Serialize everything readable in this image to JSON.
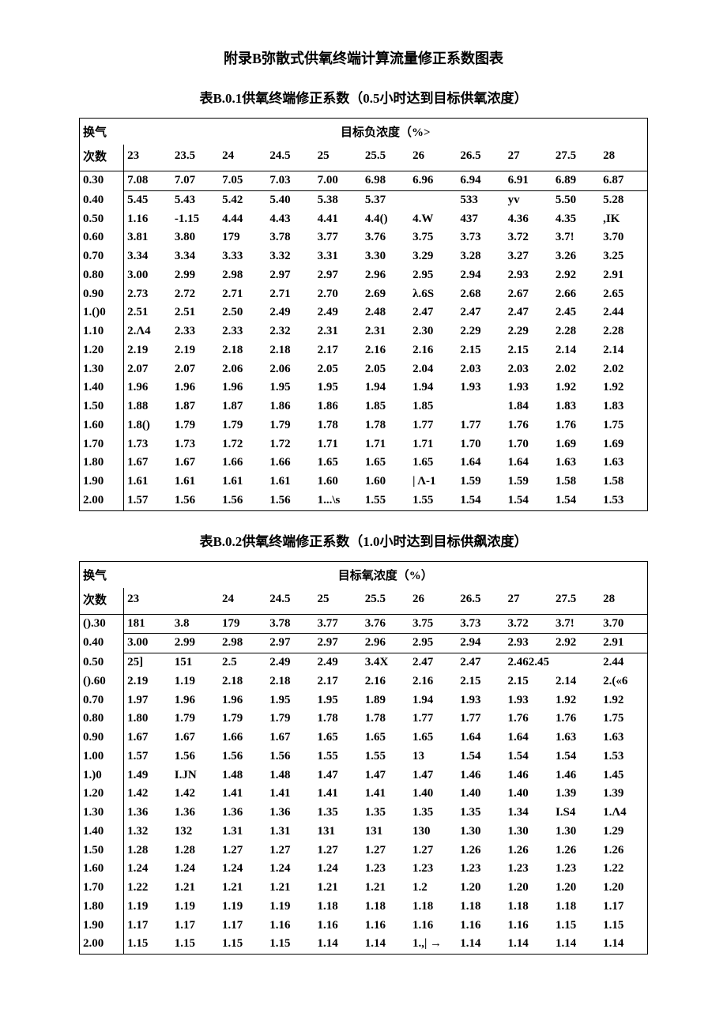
{
  "page_title": "附录B弥散式供氧终端计算流量修正系数图表",
  "table1": {
    "title": "表B.0.1供氧终端修正系数（0.5小时达到目标供氧浓度）",
    "row_header_line1": "换气",
    "row_header_line2": "次数",
    "col_group_label": "目标负浓度（%>",
    "columns": [
      "23",
      "23.5",
      "24",
      "24.5",
      "25",
      "25.5",
      "26",
      "26.5",
      "27",
      "27.5",
      "28"
    ],
    "row_labels": [
      "0.30",
      "0.40",
      "0.50",
      "0.60",
      "0.70",
      "0.80",
      "0.90",
      "1.()0",
      "1.10",
      "1.20",
      "1.30",
      "1.40",
      "1.50",
      "1.60",
      "1.70",
      "1.80",
      "1.90",
      "2.00"
    ],
    "rows": [
      [
        "7.08",
        "7.07",
        "7.05",
        "7.03",
        "7.00",
        "6.98",
        "6.96",
        "6.94",
        "6.91",
        "6.89",
        "6.87"
      ],
      [
        "5.45",
        "5.43",
        "5.42",
        "5.40",
        "5.38",
        "5.37",
        "",
        "533",
        "yv",
        "5.50",
        "5.28"
      ],
      [
        "1.16",
        "-1.15",
        "4.44",
        "4.43",
        "4.41",
        "4.4()",
        "4.W",
        "437",
        "4.36",
        "4.35",
        ",IK"
      ],
      [
        "3.81",
        "3.80",
        "179",
        "3.78",
        "3.77",
        "3.76",
        "3.75",
        "3.73",
        "3.72",
        "3.7!",
        "3.70"
      ],
      [
        "3.34",
        "3.34",
        "3.33",
        "3.32",
        "3.31",
        "3.30",
        "3.29",
        "3.28",
        "3.27",
        "3.26",
        "3.25"
      ],
      [
        "3.00",
        "2.99",
        "2.98",
        "2.97",
        "2.97",
        "2.96",
        "2.95",
        "2.94",
        "2.93",
        "2.92",
        "2.91"
      ],
      [
        "2.73",
        "2.72",
        "2.71",
        "2.71",
        "2.70",
        "2.69",
        "λ.6S",
        "2.68",
        "2.67",
        "2.66",
        "2.65"
      ],
      [
        "2.51",
        "2.51",
        "2.50",
        "2.49",
        "2.49",
        "2.48",
        "2.47",
        "2.47",
        "2.47",
        "2.45",
        "2.44"
      ],
      [
        "2.Λ4",
        "2.33",
        "2.33",
        "2.32",
        "2.31",
        "2.31",
        "2.30",
        "2.29",
        "2.29",
        "2.28",
        "2.28"
      ],
      [
        "2.19",
        "2.19",
        "2.18",
        "2.18",
        "2.17",
        "2.16",
        "2.16",
        "2.15",
        "2.15",
        "2.14",
        "2.14"
      ],
      [
        "2.07",
        "2.07",
        "2.06",
        "2.06",
        "2.05",
        "2.05",
        "2.04",
        "2.03",
        "2.03",
        "2.02",
        "2.02"
      ],
      [
        "1.96",
        "1.96",
        "1.96",
        "1.95",
        "1.95",
        "1.94",
        "1.94",
        "1.93",
        "1.93",
        "1.92",
        "1.92"
      ],
      [
        "1.88",
        "1.87",
        "1.87",
        "1.86",
        "1.86",
        "1.85",
        "1.85",
        "",
        "1.84",
        "1.83",
        "1.83"
      ],
      [
        "1.8()",
        "1.79",
        "1.79",
        "1.79",
        "1.78",
        "1.78",
        "1.77",
        "1.77",
        "1.76",
        "1.76",
        "1.75"
      ],
      [
        "1.73",
        "1.73",
        "1.72",
        "1.72",
        "1.71",
        "1.71",
        "1.71",
        "1.70",
        "1.70",
        "1.69",
        "1.69"
      ],
      [
        "1.67",
        "1.67",
        "1.66",
        "1.66",
        "1.65",
        "1.65",
        "1.65",
        "1.64",
        "1.64",
        "1.63",
        "1.63"
      ],
      [
        "1.61",
        "1.61",
        "1.61",
        "1.61",
        "1.60",
        "1.60",
        "| Λ-1",
        "1.59",
        "1.59",
        "1.58",
        "1.58"
      ],
      [
        "1.57",
        "1.56",
        "1.56",
        "1.56",
        "1...\\s",
        "1.55",
        "1.55",
        "1.54",
        "1.54",
        "1.54",
        "1.53"
      ]
    ],
    "body_first_index": 1
  },
  "table2": {
    "title": "表B.0.2供氧终端修正系数（1.0小时达到目标供飙浓度）",
    "row_header_line1": "换气",
    "row_header_line2": "次数",
    "col_group_label": "目标氧浓度（%）",
    "columns": [
      "23",
      "",
      "24",
      "24.5",
      "25",
      "25.5",
      "26",
      "26.5",
      "27",
      "27.5",
      "28"
    ],
    "row_labels": [
      "().30",
      "0.40",
      "0.50",
      "().60",
      "0.70",
      "0.80",
      "0.90",
      "1.00",
      "1.)0",
      "1.20",
      "1.30",
      "1.40",
      "1.50",
      "1.60",
      "1.70",
      "1.80",
      "1.90",
      "2.00"
    ],
    "rows": [
      [
        "181",
        "3.8",
        "179",
        "3.78",
        "3.77",
        "3.76",
        "3.75",
        "3.73",
        "3.72",
        "3.7!",
        "3.70"
      ],
      [
        "3.00",
        "2.99",
        "2.98",
        "2.97",
        "2.97",
        "2.96",
        "2.95",
        "2.94",
        "2.93",
        "2.92",
        "2.91"
      ],
      [
        "25]",
        "151",
        "2.5",
        "2.49",
        "2.49",
        "3.4X",
        "2.47",
        "2.47",
        "2.462.45",
        "",
        "2.44"
      ],
      [
        "2.19",
        "1.19",
        "2.18",
        "2.18",
        "2.17",
        "2.16",
        "2.16",
        "2.15",
        "2.15",
        "2.14",
        "2.(«6"
      ],
      [
        "1.97",
        "1.96",
        "1.96",
        "1.95",
        "1.95",
        "1.89",
        "1.94",
        "1.93",
        "1.93",
        "1.92",
        "1.92"
      ],
      [
        "1.80",
        "1.79",
        "1.79",
        "1.79",
        "1.78",
        "1.78",
        "1.77",
        "1.77",
        "1.76",
        "1.76",
        "1.75"
      ],
      [
        "1.67",
        "1.67",
        "1.66",
        "1.67",
        "1.65",
        "1.65",
        "1.65",
        "1.64",
        "1.64",
        "1.63",
        "1.63"
      ],
      [
        "1.57",
        "1.56",
        "1.56",
        "1.56",
        "1.55",
        "1.55",
        "13",
        "1.54",
        "1.54",
        "1.54",
        "1.53"
      ],
      [
        "1.49",
        "I.JN",
        "1.48",
        "1.48",
        "1.47",
        "1.47",
        "1.47",
        "1.46",
        "1.46",
        "1.46",
        "1.45"
      ],
      [
        "1.42",
        "1.42",
        "1.41",
        "1.41",
        "1.41",
        "1.41",
        "1.40",
        "1.40",
        "1.40",
        "1.39",
        "1.39"
      ],
      [
        "1.36",
        "1.36",
        "1.36",
        "1.36",
        "1.35",
        "1.35",
        "1.35",
        "1.35",
        "1.34",
        "I.S4",
        "1.Λ4"
      ],
      [
        "1.32",
        "132",
        "1.31",
        "1.31",
        "131",
        "131",
        "130",
        "1.30",
        "1.30",
        "1.30",
        "1.29"
      ],
      [
        "1.28",
        "1.28",
        "1.27",
        "1.27",
        "1.27",
        "1.27",
        "1.27",
        "1.26",
        "1.26",
        "1.26",
        "1.26"
      ],
      [
        "1.24",
        "1.24",
        "1.24",
        "1.24",
        "1.24",
        "1.23",
        "1.23",
        "1.23",
        "1.23",
        "1.23",
        "1.22"
      ],
      [
        "1.22",
        "1.21",
        "1.21",
        "1.21",
        "1.21",
        "1.21",
        "1.2",
        "1.20",
        "1.20",
        "1.20",
        "1.20"
      ],
      [
        "1.19",
        "1.19",
        "1.19",
        "1.19",
        "1.18",
        "1.18",
        "1.18",
        "1.18",
        "1.18",
        "1.18",
        "1.17"
      ],
      [
        "1.17",
        "1.17",
        "1.17",
        "1.16",
        "1.16",
        "1.16",
        "1.16",
        "1.16",
        "1.16",
        "1.15",
        "1.15"
      ],
      [
        "1.15",
        "1.15",
        "1.15",
        "1.15",
        "1.14",
        "1.14",
        "1.,| →",
        "1.14",
        "1.14",
        "1.14",
        "1.14"
      ]
    ],
    "body_first_index": 2
  }
}
